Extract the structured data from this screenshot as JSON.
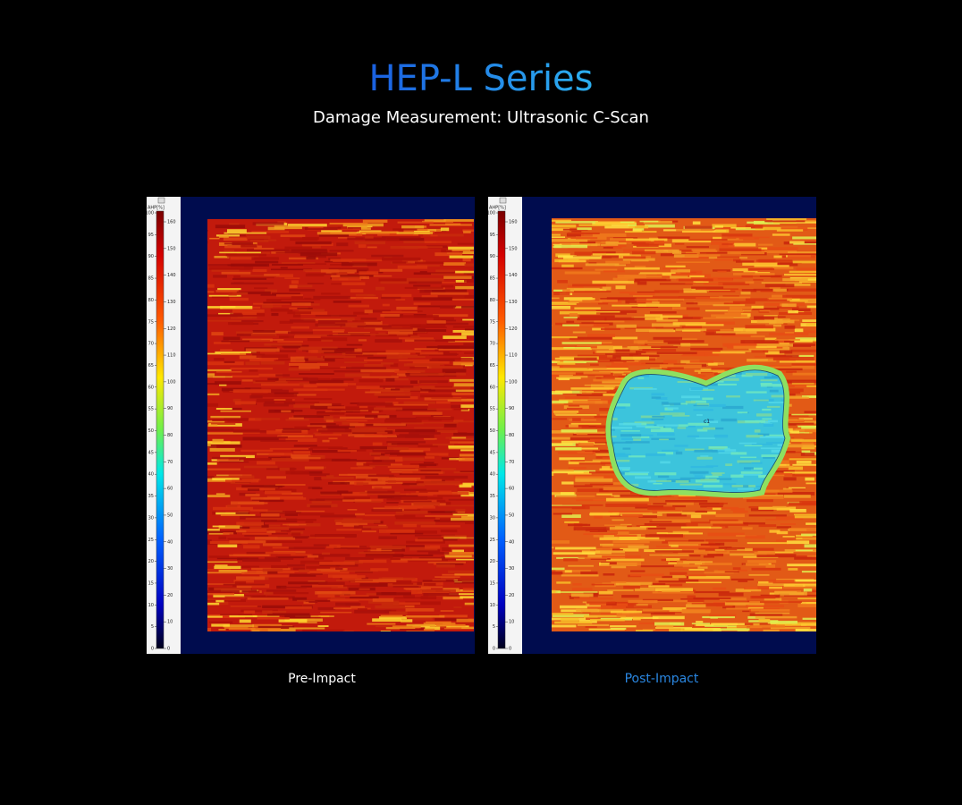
{
  "header": {
    "title": "HEP-L Series",
    "subtitle": "Damage Measurement: Ultrasonic C-Scan"
  },
  "scale": {
    "label": "AHP[%]",
    "left_ticks": [
      0,
      5,
      10,
      15,
      20,
      25,
      30,
      35,
      40,
      45,
      50,
      55,
      60,
      65,
      70,
      75,
      80,
      85,
      90,
      95,
      100
    ],
    "right_ticks": [
      0,
      10,
      20,
      30,
      40,
      50,
      60,
      70,
      80,
      90,
      100,
      110,
      120,
      130,
      140,
      150,
      160
    ]
  },
  "panels": [
    {
      "caption": "Pre-Impact"
    },
    {
      "caption": "Post-Impact",
      "annotation": "c1"
    }
  ]
}
